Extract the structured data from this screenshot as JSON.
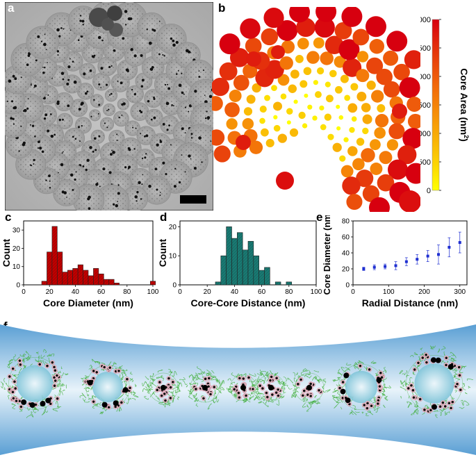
{
  "panel_labels": {
    "a": "a",
    "b": "b",
    "c": "c",
    "d": "d",
    "e": "e",
    "f": "f"
  },
  "colorbar": {
    "title": "Core Area (nm²)",
    "title_base": "Core Area (nm",
    "title_sup": "2",
    "title_end": ")",
    "ticks": [
      "3000",
      "2500",
      "2000",
      "1500",
      "1000",
      "500",
      "0"
    ],
    "colors": [
      "#d7000f",
      "#e6390c",
      "#f26b0a",
      "#f79a07",
      "#fbc804",
      "#ffff00"
    ]
  },
  "chart_data": [
    {
      "type": "bar",
      "panel": "c",
      "xlabel": "Core Diameter (nm)",
      "ylabel": "Count",
      "xlim": [
        0,
        100
      ],
      "ylim": [
        0,
        35
      ],
      "xticks": [
        "0",
        "20",
        "40",
        "60",
        "80",
        "100"
      ],
      "yticks": [
        "0",
        "10",
        "20",
        "30"
      ],
      "bin_width": 4,
      "bins": [
        16,
        20,
        24,
        28,
        32,
        36,
        40,
        44,
        48,
        52,
        56,
        60,
        64,
        68,
        72,
        76,
        80,
        84,
        88,
        92,
        96,
        100
      ],
      "values": [
        2,
        18,
        32,
        18,
        7,
        8,
        9,
        11,
        8,
        5,
        9,
        6,
        3,
        3,
        1,
        0,
        0,
        0,
        0,
        0,
        0,
        2
      ],
      "color": "#c00000"
    },
    {
      "type": "bar",
      "panel": "d",
      "xlabel": "Core-Core Distance (nm)",
      "ylabel": "Count",
      "xlim": [
        0,
        100
      ],
      "ylim": [
        0,
        22
      ],
      "xticks": [
        "0",
        "20",
        "40",
        "60",
        "80",
        "100"
      ],
      "yticks": [
        "0",
        "10",
        "20"
      ],
      "bin_width": 4,
      "bins": [
        28,
        32,
        36,
        40,
        44,
        48,
        52,
        56,
        60,
        64,
        68,
        72,
        76,
        80
      ],
      "values": [
        1,
        10,
        20,
        16,
        18,
        12,
        15,
        10,
        5,
        6,
        0,
        1,
        0,
        1
      ],
      "color": "#1a7a73"
    },
    {
      "type": "scatter",
      "panel": "e",
      "xlabel": "Radial Distance (nm)",
      "ylabel": "Core Diameter (nm)",
      "xlim": [
        0,
        320
      ],
      "ylim": [
        0,
        80
      ],
      "xticks": [
        "0",
        "100",
        "200",
        "300"
      ],
      "yticks": [
        "0",
        "20",
        "40",
        "60",
        "80"
      ],
      "x": [
        30,
        60,
        90,
        120,
        150,
        180,
        210,
        240,
        270,
        300
      ],
      "y": [
        20,
        22,
        23,
        24,
        29,
        32,
        36,
        38,
        47,
        53
      ],
      "err": [
        2,
        3,
        3,
        5,
        5,
        6,
        7,
        12,
        12,
        13
      ],
      "color": "#1f2fd1"
    }
  ]
}
